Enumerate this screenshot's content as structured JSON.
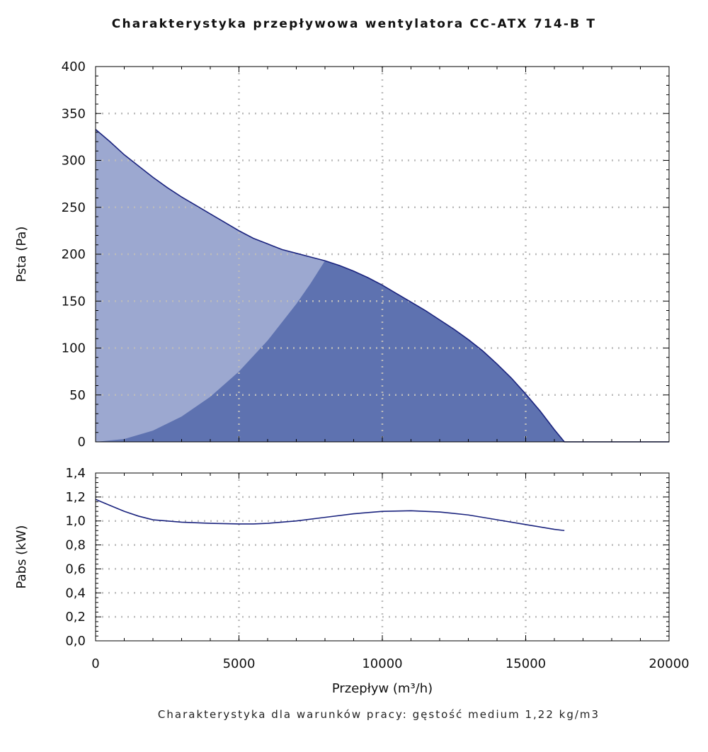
{
  "title": "Charakterystyka przepływowa wentylatora CC-ATX 714-B T",
  "footnote": "Charakterystyka dla warunków pracy: gęstość medium 1,22 kg/m3",
  "colors": {
    "curve": "#1a237e",
    "area_light": "#9ca8d0",
    "area_dark": "#5e72b0",
    "grid": "#bbbbbb"
  },
  "chart_data": [
    {
      "type": "area",
      "ylabel": "Psta (Pa)",
      "xlim": [
        0,
        20000
      ],
      "ylim": [
        0,
        400
      ],
      "yticks": [
        "0",
        "50",
        "100",
        "150",
        "200",
        "250",
        "300",
        "350",
        "400"
      ],
      "grid": true,
      "series": [
        {
          "x": [
            0,
            500,
            1000,
            1500,
            2000,
            2500,
            3000,
            3500,
            4000,
            4500,
            5000,
            5500,
            6000,
            6500,
            7000,
            7500,
            8000,
            8500,
            9000,
            9500,
            10000,
            10500,
            11000,
            11500,
            12000,
            12500,
            13000,
            13500,
            14000,
            14500,
            15000,
            15500,
            16000,
            16350,
            20000
          ],
          "y": [
            333,
            320,
            306,
            294,
            282,
            271,
            261,
            252,
            243,
            234,
            225,
            217,
            211,
            205,
            201,
            197,
            193,
            188,
            182,
            175,
            167,
            158,
            149,
            140,
            130,
            120,
            109,
            97,
            83,
            68,
            51,
            33,
            13,
            0,
            0
          ]
        },
        {
          "x": [
            0,
            1000,
            2000,
            3000,
            4000,
            5000,
            6000,
            7000,
            7500,
            8000
          ],
          "y": [
            0,
            3,
            12,
            27,
            48,
            75,
            108,
            147,
            169,
            193
          ]
        }
      ]
    },
    {
      "type": "line",
      "xlabel": "Przepływ (m³/h)",
      "ylabel": "Pabs (kW)",
      "xlim": [
        0,
        20000
      ],
      "ylim": [
        0,
        1.4
      ],
      "xticks": [
        "0",
        "5000",
        "10000",
        "15000",
        "20000"
      ],
      "yticks": [
        "0,0",
        "0,2",
        "0,4",
        "0,6",
        "0,8",
        "1,0",
        "1,2",
        "1,4"
      ],
      "grid": true,
      "series": [
        {
          "x": [
            0,
            500,
            1000,
            1500,
            2000,
            3000,
            4000,
            5000,
            5500,
            6000,
            7000,
            8000,
            9000,
            10000,
            11000,
            12000,
            13000,
            14000,
            15000,
            16000,
            16350
          ],
          "y": [
            1.18,
            1.13,
            1.08,
            1.04,
            1.01,
            0.99,
            0.98,
            0.975,
            0.975,
            0.98,
            1.0,
            1.03,
            1.06,
            1.08,
            1.085,
            1.075,
            1.05,
            1.01,
            0.97,
            0.93,
            0.92
          ]
        }
      ]
    }
  ]
}
